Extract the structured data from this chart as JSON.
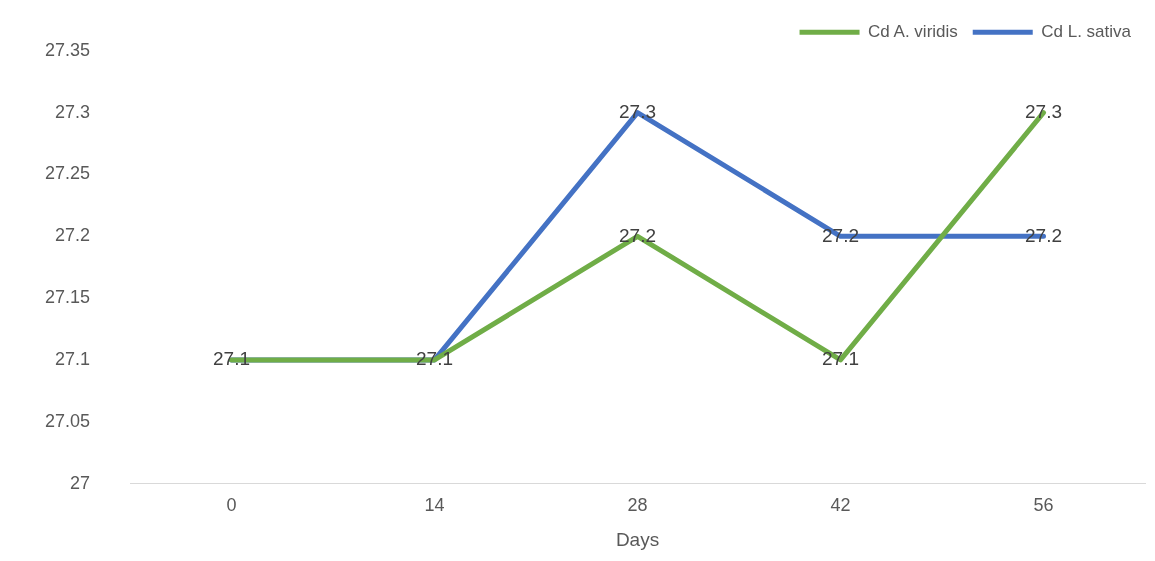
{
  "chart_data": {
    "type": "line",
    "xlabel": "Days",
    "categories": [
      "0",
      "14",
      "28",
      "42",
      "56"
    ],
    "series": [
      {
        "name": "Cd A. viridis",
        "color": "#70ad47",
        "values": [
          27.1,
          27.1,
          27.2,
          27.1,
          27.3
        ],
        "value_labels": [
          null,
          null,
          "27.2",
          "27.1",
          "27.3"
        ]
      },
      {
        "name": "Cd L. sativa",
        "color": "#4472c4",
        "values": [
          27.1,
          27.1,
          27.3,
          27.2,
          27.2
        ],
        "value_labels": [
          "27.1",
          "27.1",
          "27.3",
          "27.2",
          "27.2"
        ]
      }
    ],
    "ylim": [
      27,
      27.35
    ],
    "yticks": [
      27,
      27.05,
      27.1,
      27.15,
      27.2,
      27.25,
      27.3,
      27.35
    ],
    "grid": false,
    "legend": "top right",
    "marker": "none",
    "line_style": "solid"
  }
}
